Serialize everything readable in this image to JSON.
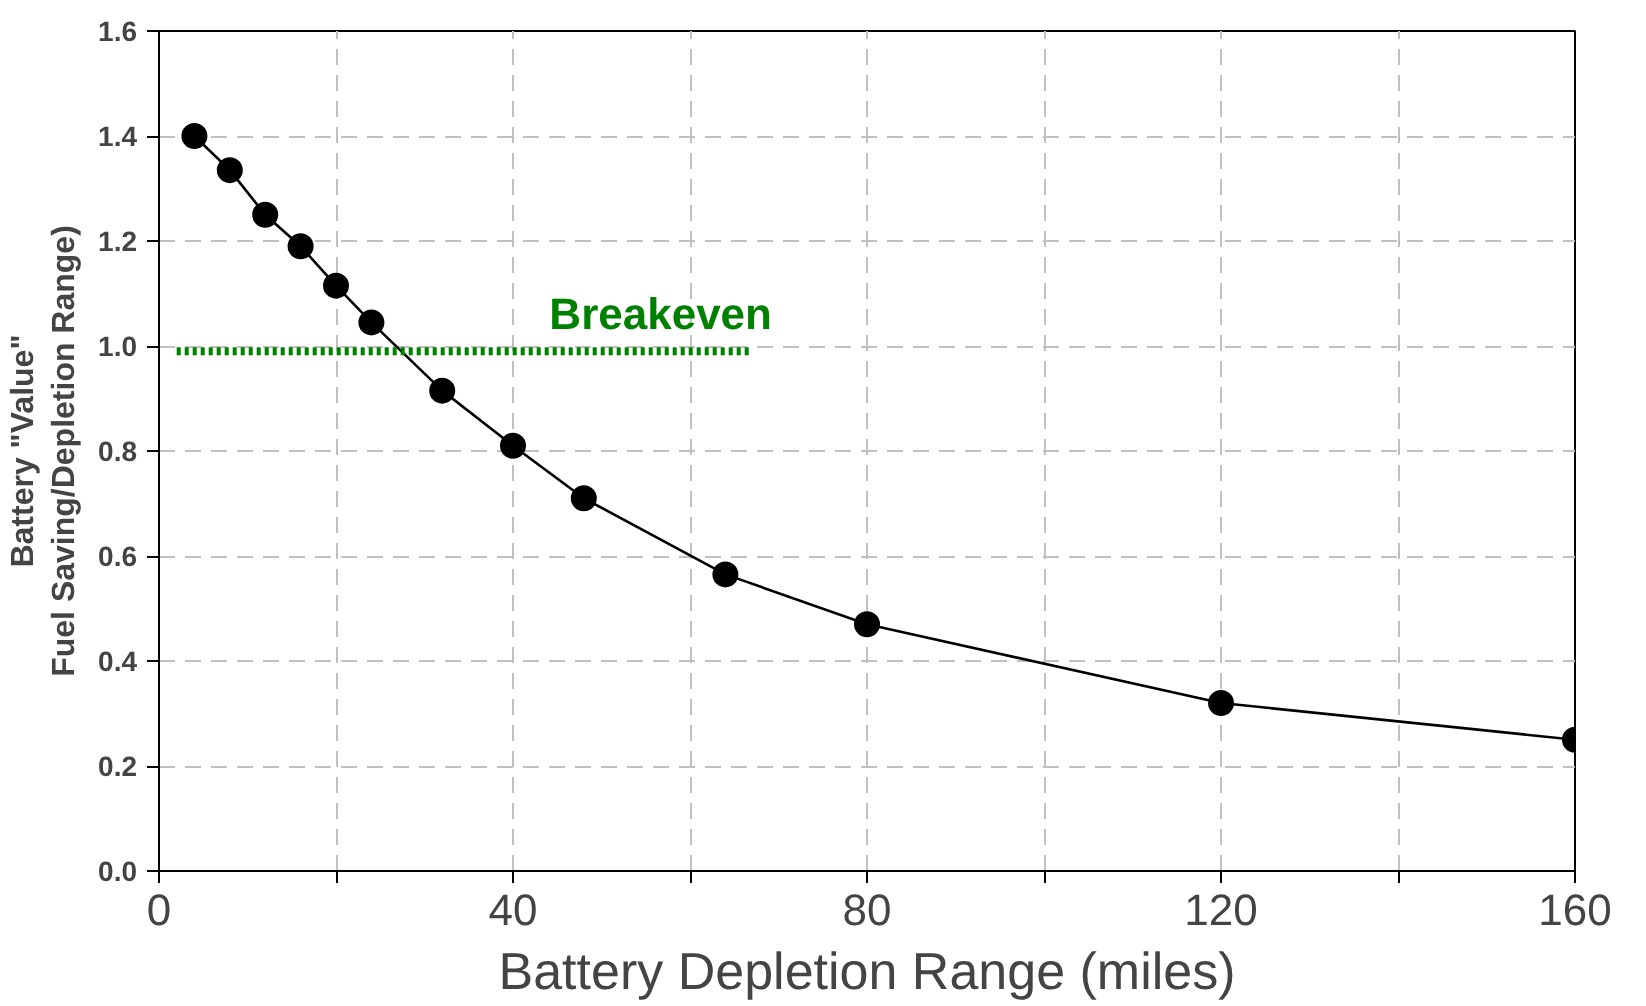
{
  "chart_data": {
    "type": "line",
    "xlabel": "Battery Depletion Range (miles)",
    "ylabel": "Battery \"Value\"\nFuel Saving/Depletion Range)",
    "x": [
      4,
      8,
      12,
      16,
      20,
      24,
      32,
      40,
      48,
      64,
      80,
      120,
      160
    ],
    "series": [
      {
        "color": "#000000",
        "marker": "circle",
        "values": [
          1.4,
          1.335,
          1.25,
          1.19,
          1.115,
          1.045,
          0.915,
          0.81,
          0.71,
          0.565,
          0.47,
          0.32,
          0.25
        ]
      },
      {
        "name": "Breakeven",
        "type": "line",
        "x": [
          2,
          67
        ],
        "values": [
          0.99,
          0.99
        ],
        "color": "#008000",
        "line_style": "dotted",
        "marker": "none"
      }
    ],
    "xlim": [
      0,
      160
    ],
    "ylim": [
      0,
      1.6
    ],
    "xticks": [
      0,
      {
        "value": 20,
        "label": null
      },
      40,
      {
        "value": 60,
        "label": null
      },
      80,
      {
        "value": 100,
        "label": null
      },
      120,
      {
        "value": 140,
        "label": null
      },
      160
    ],
    "yticks": [
      {
        "value": 0,
        "label": "0.0"
      },
      0.2,
      0.4,
      0.6,
      0.8,
      {
        "value": 1,
        "label": "1.0"
      },
      1.2,
      1.4,
      1.6
    ],
    "grid": true
  }
}
